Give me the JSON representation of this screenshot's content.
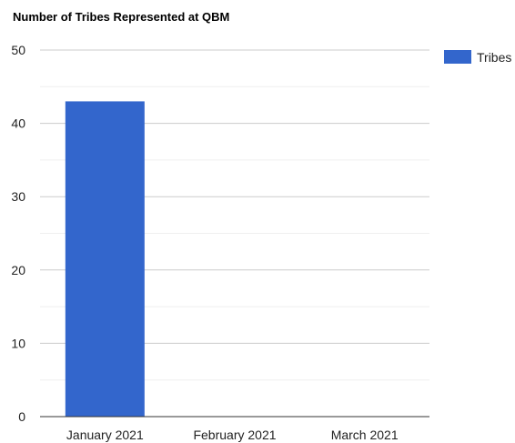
{
  "chart_data": {
    "type": "bar",
    "title": "Number of Tribes Represented at QBM",
    "categories": [
      "January 2021",
      "February 2021",
      "March 2021"
    ],
    "series": [
      {
        "name": "Tribes",
        "values": [
          43,
          0,
          0
        ],
        "color": "#3366cc"
      }
    ],
    "ylim": [
      0,
      50
    ],
    "yticks": [
      0,
      10,
      20,
      30,
      40,
      50
    ],
    "grid": true,
    "minor_grid": true,
    "legend_position": "right"
  }
}
